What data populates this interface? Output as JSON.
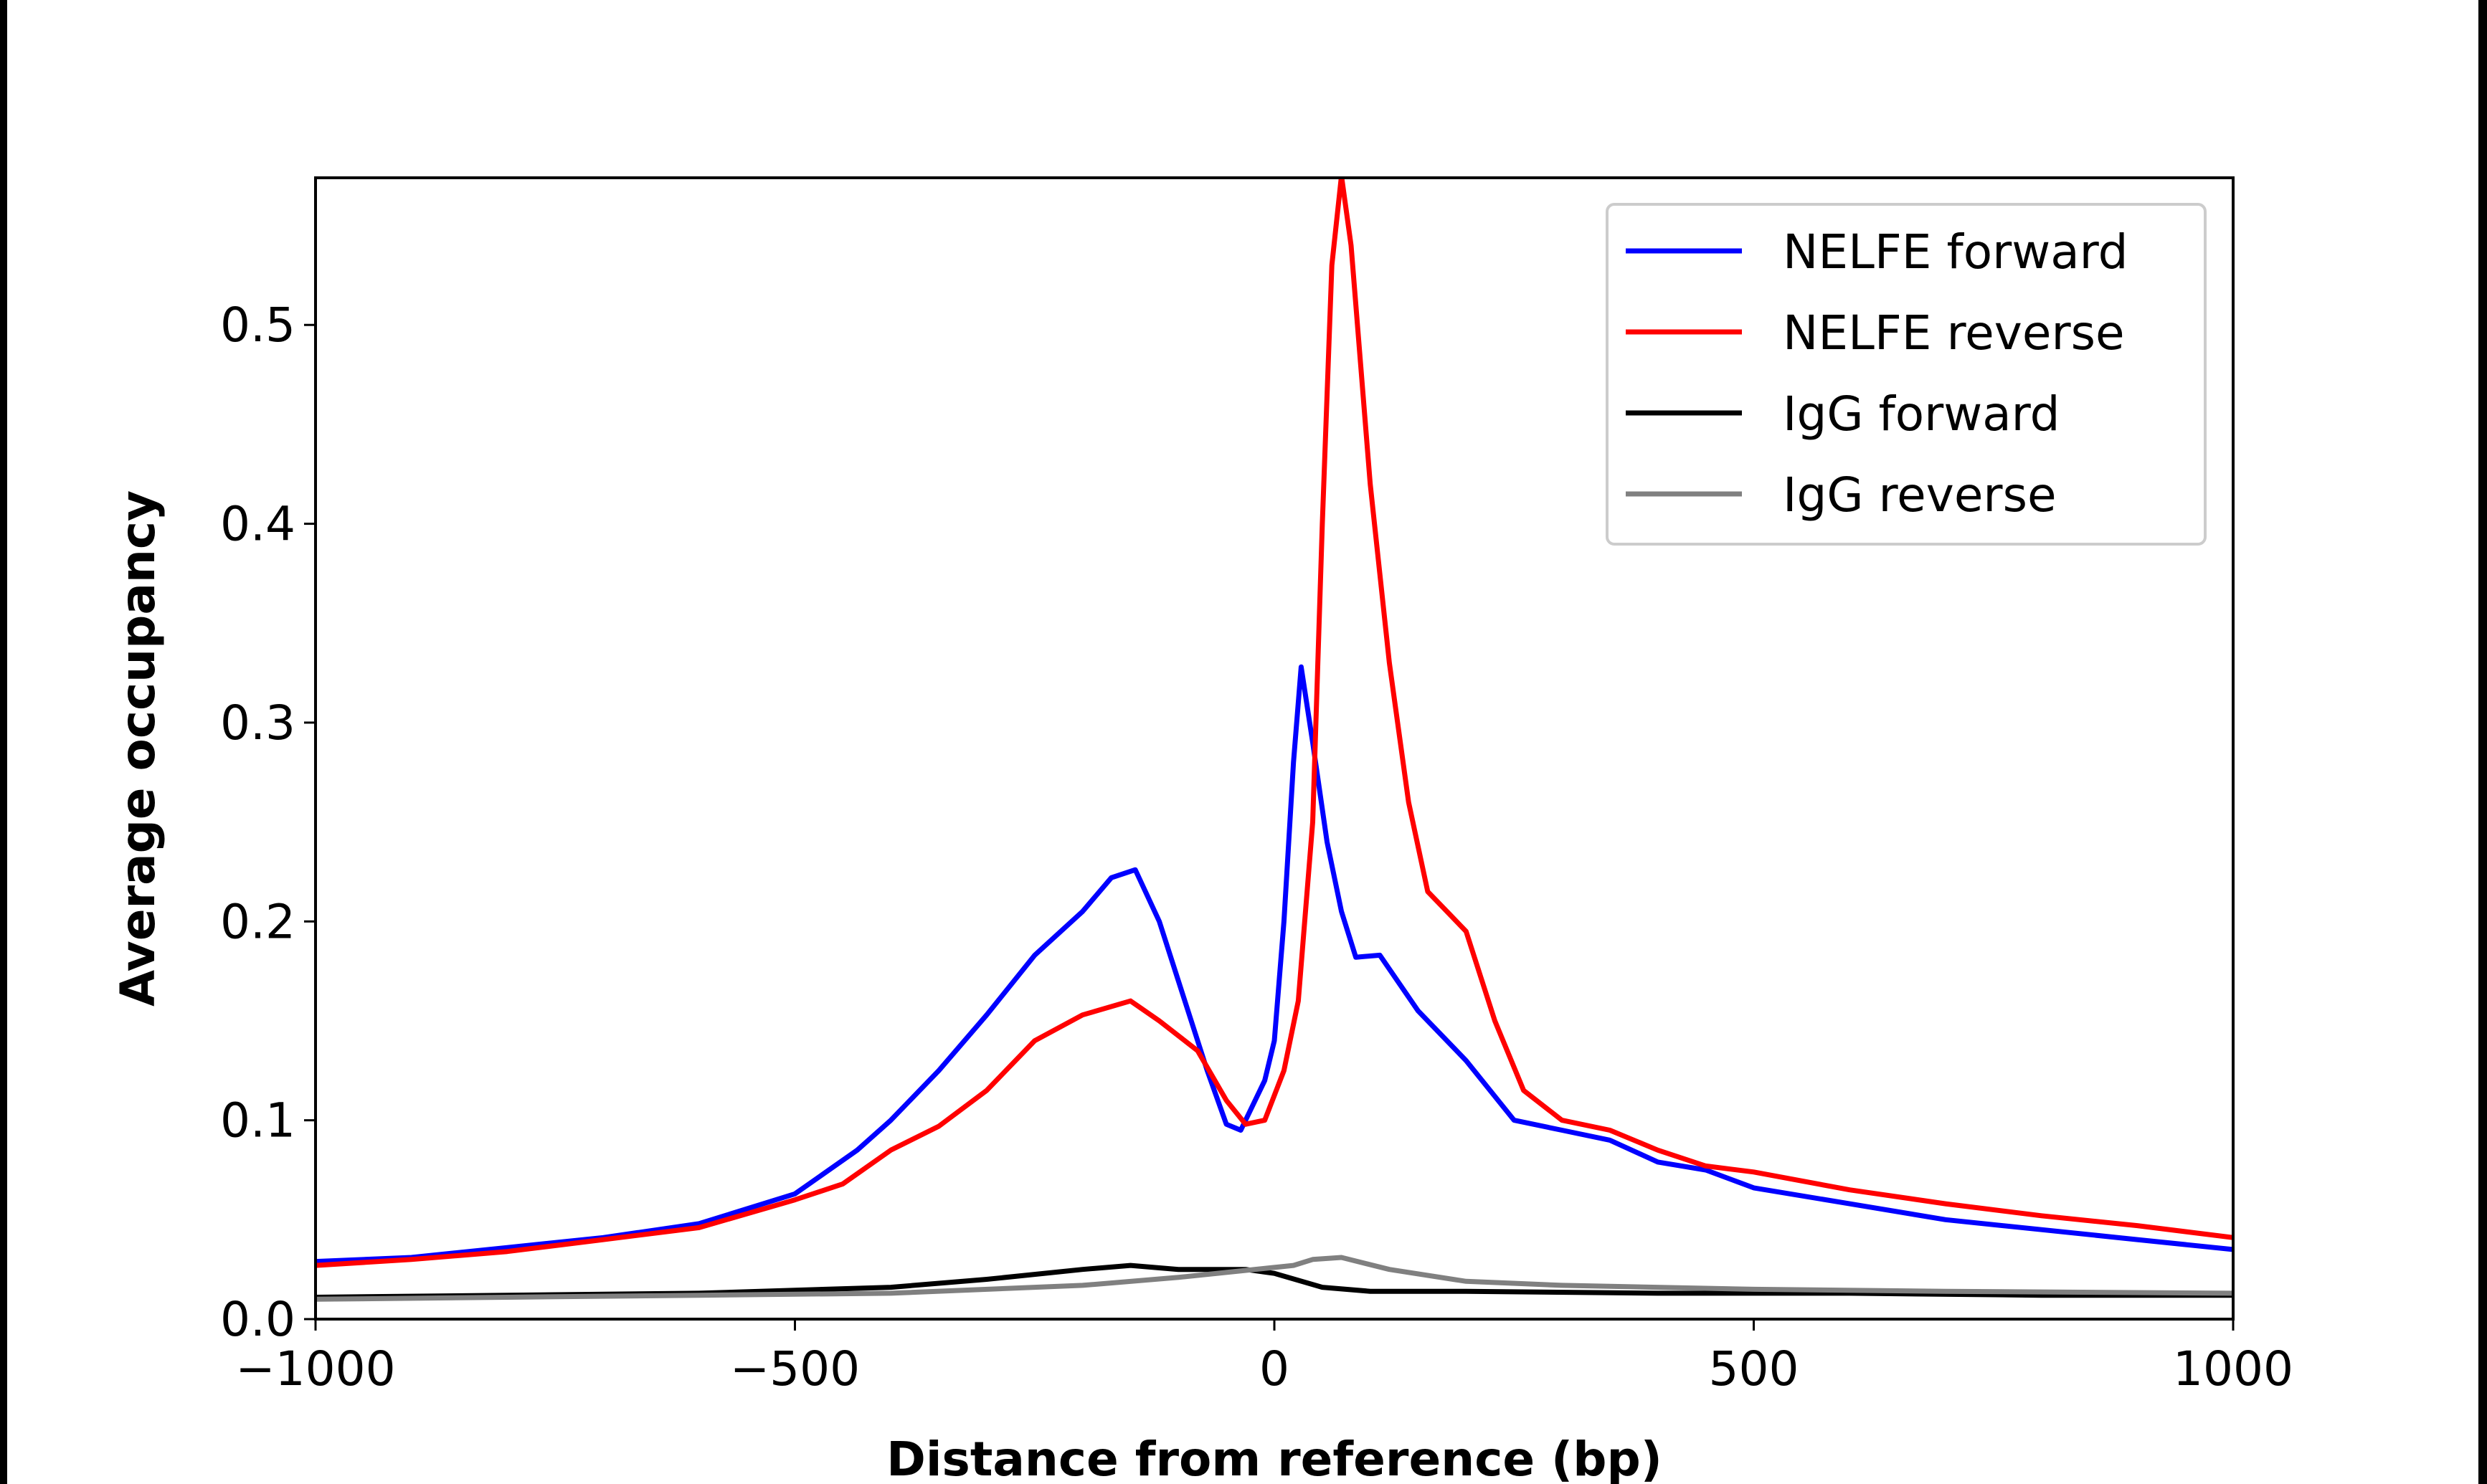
{
  "chart_data": {
    "type": "line",
    "title": "",
    "xlabel": "Distance from reference (bp)",
    "ylabel": "Average occupancy",
    "xlim": [
      -1000,
      1000
    ],
    "ylim": [
      0,
      0.574
    ],
    "xticks": [
      -1000,
      -500,
      0,
      500,
      1000
    ],
    "xtick_labels": [
      "−1000",
      "−500",
      "0",
      "500",
      "1000"
    ],
    "yticks": [
      0.0,
      0.1,
      0.2,
      0.3,
      0.4,
      0.5
    ],
    "ytick_labels": [
      "0.0",
      "0.1",
      "0.2",
      "0.3",
      "0.4",
      "0.5"
    ],
    "grid": false,
    "legend_position": "top-right",
    "series": [
      {
        "name": "NELFE forward",
        "color": "#0000ff",
        "x": [
          -1000,
          -900,
          -800,
          -700,
          -600,
          -500,
          -435,
          -400,
          -350,
          -300,
          -250,
          -200,
          -170,
          -145,
          -120,
          -100,
          -70,
          -50,
          -35,
          -10,
          0,
          10,
          20,
          28,
          40,
          55,
          70,
          85,
          110,
          150,
          200,
          250,
          300,
          350,
          400,
          450,
          500,
          600,
          700,
          800,
          900,
          1000
        ],
        "y": [
          0.029,
          0.031,
          0.036,
          0.041,
          0.048,
          0.063,
          0.085,
          0.1,
          0.125,
          0.153,
          0.183,
          0.205,
          0.222,
          0.226,
          0.2,
          0.17,
          0.125,
          0.098,
          0.095,
          0.12,
          0.14,
          0.2,
          0.28,
          0.328,
          0.29,
          0.24,
          0.205,
          0.182,
          0.183,
          0.155,
          0.13,
          0.1,
          0.095,
          0.09,
          0.079,
          0.075,
          0.066,
          0.058,
          0.05,
          0.045,
          0.04,
          0.035
        ]
      },
      {
        "name": "NELFE reverse",
        "color": "#ff0000",
        "x": [
          -1000,
          -900,
          -800,
          -700,
          -600,
          -500,
          -450,
          -400,
          -350,
          -300,
          -250,
          -200,
          -150,
          -120,
          -80,
          -50,
          -30,
          -10,
          10,
          25,
          40,
          50,
          60,
          70,
          80,
          100,
          120,
          140,
          160,
          180,
          200,
          230,
          260,
          300,
          350,
          400,
          450,
          500,
          600,
          700,
          800,
          900,
          1000
        ],
        "y": [
          0.027,
          0.03,
          0.034,
          0.04,
          0.046,
          0.06,
          0.068,
          0.085,
          0.097,
          0.115,
          0.14,
          0.153,
          0.16,
          0.15,
          0.135,
          0.11,
          0.098,
          0.1,
          0.125,
          0.16,
          0.25,
          0.4,
          0.53,
          0.575,
          0.54,
          0.42,
          0.33,
          0.26,
          0.215,
          0.205,
          0.195,
          0.15,
          0.115,
          0.1,
          0.095,
          0.085,
          0.077,
          0.074,
          0.065,
          0.058,
          0.052,
          0.047,
          0.041
        ]
      },
      {
        "name": "IgG forward",
        "color": "#000000",
        "x": [
          -1000,
          -800,
          -600,
          -400,
          -300,
          -200,
          -150,
          -100,
          -30,
          0,
          50,
          100,
          200,
          400,
          600,
          800,
          1000
        ],
        "y": [
          0.011,
          0.012,
          0.013,
          0.016,
          0.02,
          0.025,
          0.027,
          0.025,
          0.025,
          0.023,
          0.016,
          0.014,
          0.014,
          0.013,
          0.013,
          0.012,
          0.012
        ]
      },
      {
        "name": "IgG reverse",
        "color": "#808080",
        "x": [
          -1000,
          -800,
          -600,
          -400,
          -200,
          -100,
          0,
          20,
          40,
          70,
          120,
          200,
          300,
          500,
          700,
          1000
        ],
        "y": [
          0.01,
          0.011,
          0.012,
          0.013,
          0.017,
          0.021,
          0.026,
          0.027,
          0.03,
          0.031,
          0.025,
          0.019,
          0.017,
          0.015,
          0.014,
          0.013
        ]
      }
    ]
  }
}
